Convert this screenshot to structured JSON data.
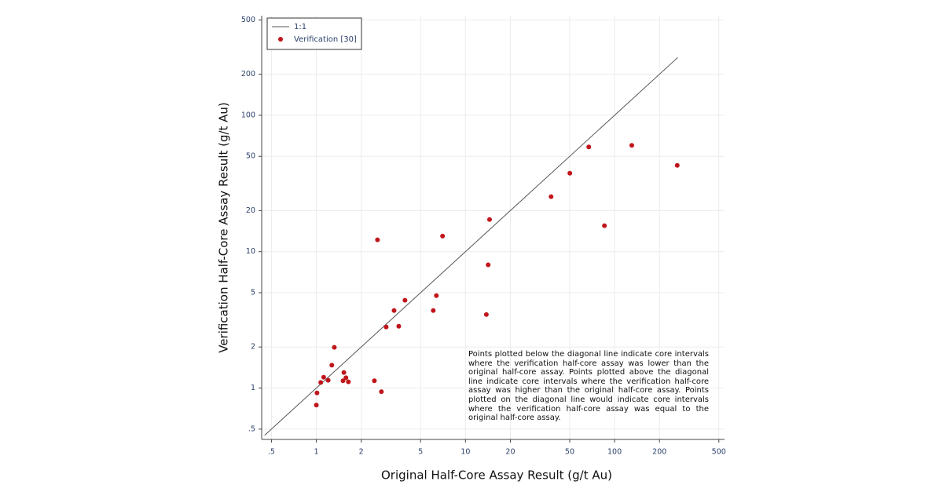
{
  "chart_data": {
    "type": "scatter",
    "x_label": "Original Half-Core Assay Result (g/t Au)",
    "y_label": "Verification Half-Core Assay Result (g/t Au)",
    "xscale": "log",
    "yscale": "log",
    "grid": true,
    "legend": "upper left",
    "xlim": [
      0.43,
      546
    ],
    "ylim": [
      0.42,
      537
    ],
    "xticks": [
      {
        "value": 0.5,
        "label": ".5"
      },
      1,
      2,
      5,
      10,
      20,
      50,
      100,
      200,
      500
    ],
    "yticks": [
      {
        "value": 0.5,
        "label": ".5"
      },
      1,
      2,
      5,
      10,
      20,
      50,
      100,
      200,
      500
    ],
    "series": [
      {
        "name": "1:1",
        "type": "line",
        "color": "#555555",
        "x": [
          0.45,
          265
        ],
        "values": [
          0.45,
          265
        ]
      },
      {
        "name": "Verification [30]",
        "type": "scatter",
        "color": "#c0161b",
        "x": [
          1.0,
          1.01,
          1.07,
          1.12,
          1.2,
          1.27,
          1.32,
          1.53,
          1.58,
          1.51,
          1.64,
          2.45,
          2.73,
          2.57,
          2.94,
          3.32,
          3.57,
          3.93,
          6.08,
          6.38,
          7.02,
          13.8,
          14.2,
          14.5,
          37.5,
          50.1,
          67.1,
          85.5,
          130.4,
          263
        ],
        "values": [
          0.75,
          0.92,
          1.1,
          1.2,
          1.14,
          1.47,
          1.99,
          1.3,
          1.19,
          1.13,
          1.11,
          1.13,
          0.94,
          12.2,
          2.8,
          3.7,
          2.84,
          4.4,
          3.7,
          4.76,
          13.0,
          3.46,
          8.0,
          17.2,
          25.3,
          37.6,
          58.6,
          15.5,
          60.2,
          42.9
        ]
      }
    ],
    "annotation": "Points plotted below the diagonal line indicate core intervals where the verification half-core assay was lower than the original half-core assay. Points plotted above the diagonal line indicate core intervals where the verification half-core assay was higher than the original half-core assay. Points plotted on the diagonal line would indicate core intervals where the verification half-core assay was equal to the original half-core assay."
  }
}
